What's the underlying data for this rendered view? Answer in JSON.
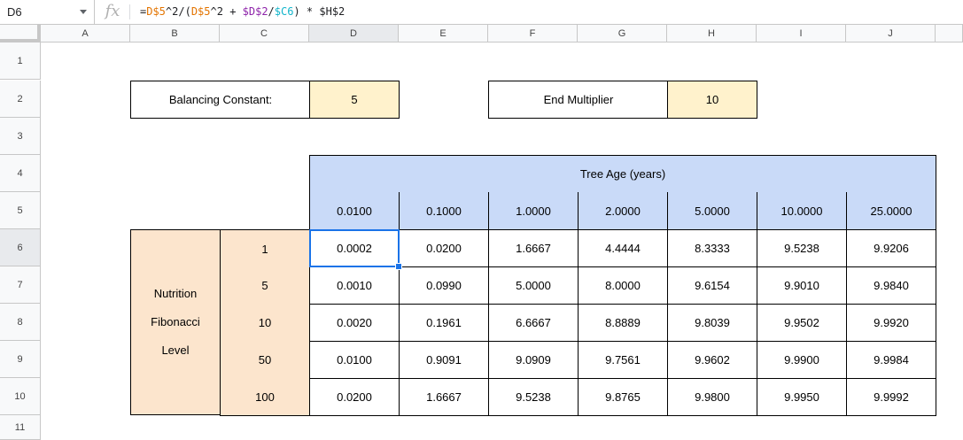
{
  "formula_bar": {
    "cell_ref": "D6",
    "fx_label": "fx",
    "formula": {
      "p1": "=",
      "p2": "D$5",
      "p3": "^2/(",
      "p4": "D$5",
      "p5": "^2 + ",
      "p6": "$D$2",
      "p7": "/",
      "p8": "$C6",
      "p9": ") * $H$2"
    }
  },
  "columns": [
    "A",
    "B",
    "C",
    "D",
    "E",
    "F",
    "G",
    "H",
    "I",
    "J"
  ],
  "rows": [
    "1",
    "2",
    "3",
    "4",
    "5",
    "6",
    "7",
    "8",
    "9",
    "10",
    "11"
  ],
  "params": {
    "balancing_label": "Balancing Constant:",
    "balancing_value": "5",
    "end_label": "End Multiplier",
    "end_value": "10"
  },
  "table": {
    "header": "Tree Age (years)",
    "ages": [
      "0.0100",
      "0.1000",
      "1.0000",
      "2.0000",
      "5.0000",
      "10.0000",
      "25.0000"
    ],
    "side_label": [
      "Nutrition",
      "Fibonacci",
      "Level"
    ],
    "levels": [
      "1",
      "5",
      "10",
      "50",
      "100"
    ],
    "values": [
      [
        "0.0002",
        "0.0200",
        "1.6667",
        "4.4444",
        "8.3333",
        "9.5238",
        "9.9206"
      ],
      [
        "0.0010",
        "0.0990",
        "5.0000",
        "8.0000",
        "9.6154",
        "9.9010",
        "9.9840"
      ],
      [
        "0.0020",
        "0.1961",
        "6.6667",
        "8.8889",
        "9.8039",
        "9.9502",
        "9.9920"
      ],
      [
        "0.0100",
        "0.9091",
        "9.0909",
        "9.7561",
        "9.9602",
        "9.9900",
        "9.9984"
      ],
      [
        "0.0200",
        "1.6667",
        "9.5238",
        "9.8765",
        "9.9800",
        "9.9950",
        "9.9992"
      ]
    ]
  },
  "colors": {
    "input_fill": "#fff2cc",
    "header_fill": "#c9daf8",
    "label_fill": "#fce5cd",
    "selection": "#1a73e8"
  }
}
